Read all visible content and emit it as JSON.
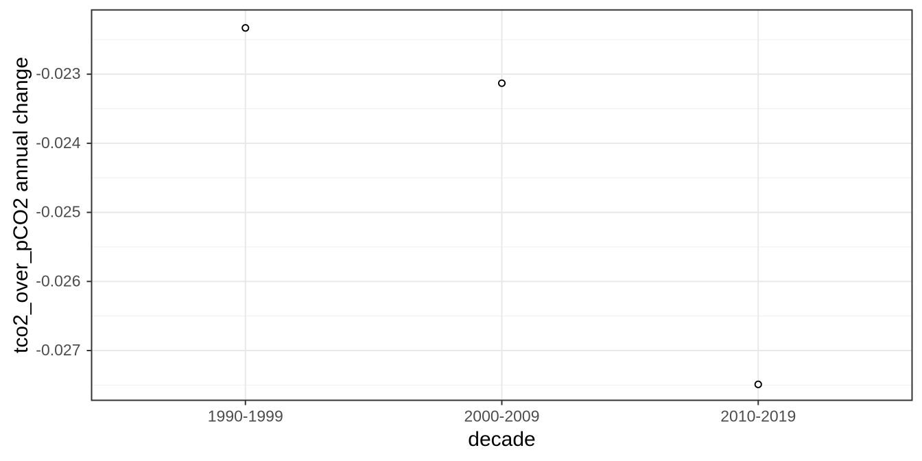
{
  "figure": {
    "background": "#ffffff"
  },
  "chart_data": {
    "type": "scatter",
    "title": "",
    "xlabel": "decade",
    "ylabel": "tco2_over_pCO2 annual change",
    "categories": [
      "1990-1999",
      "2000-2009",
      "2010-2019"
    ],
    "values": [
      -0.02233,
      -0.02313,
      -0.02749
    ],
    "ylim": [
      -0.02207,
      -0.02772
    ],
    "y_major_ticks": [
      -0.023,
      -0.024,
      -0.025,
      -0.026,
      -0.027
    ],
    "y_tick_labels": [
      "-0.023",
      "-0.024",
      "-0.025",
      "-0.026",
      "-0.027"
    ],
    "y_minor_ticks": [
      -0.0225,
      -0.0235,
      -0.0245,
      -0.0255,
      -0.0265,
      -0.0275
    ],
    "grid": "major-and-minor-horizontal, major-vertical-at-categories",
    "legend_position": "none",
    "style": {
      "panel_background": "#ffffff",
      "panel_border_color": "#333333",
      "grid_major_color": "#e8e8e8",
      "grid_minor_color": "#f1f1f1",
      "tick_mark_color": "#333333",
      "tick_label_color": "#4d4d4d",
      "axis_title_color": "#000000",
      "point_stroke_color": "#000000",
      "point_fill_color": "#ffffff"
    }
  }
}
